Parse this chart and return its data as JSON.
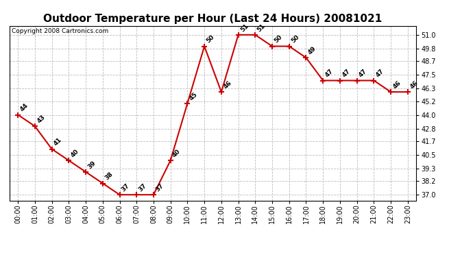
{
  "title": "Outdoor Temperature per Hour (Last 24 Hours) 20081021",
  "copyright": "Copyright 2008 Cartronics.com",
  "hours": [
    "00:00",
    "01:00",
    "02:00",
    "03:00",
    "04:00",
    "05:00",
    "06:00",
    "07:00",
    "08:00",
    "09:00",
    "10:00",
    "11:00",
    "12:00",
    "13:00",
    "14:00",
    "15:00",
    "16:00",
    "17:00",
    "18:00",
    "19:00",
    "20:00",
    "21:00",
    "22:00",
    "23:00"
  ],
  "temps": [
    44,
    43,
    41,
    40,
    39,
    38,
    37,
    37,
    37,
    40,
    45,
    50,
    46,
    51,
    51,
    50,
    50,
    49,
    47,
    47,
    47,
    47,
    46,
    46
  ],
  "yticks": [
    37.0,
    38.2,
    39.3,
    40.5,
    41.7,
    42.8,
    44.0,
    45.2,
    46.3,
    47.5,
    48.7,
    49.8,
    51.0
  ],
  "ylim_min": 36.5,
  "ylim_max": 51.8,
  "line_color": "#cc0000",
  "bg_color": "#ffffff",
  "grid_color": "#bbbbbb",
  "title_fontsize": 11,
  "copyright_fontsize": 6.5,
  "label_fontsize": 6.5,
  "tick_fontsize": 7
}
